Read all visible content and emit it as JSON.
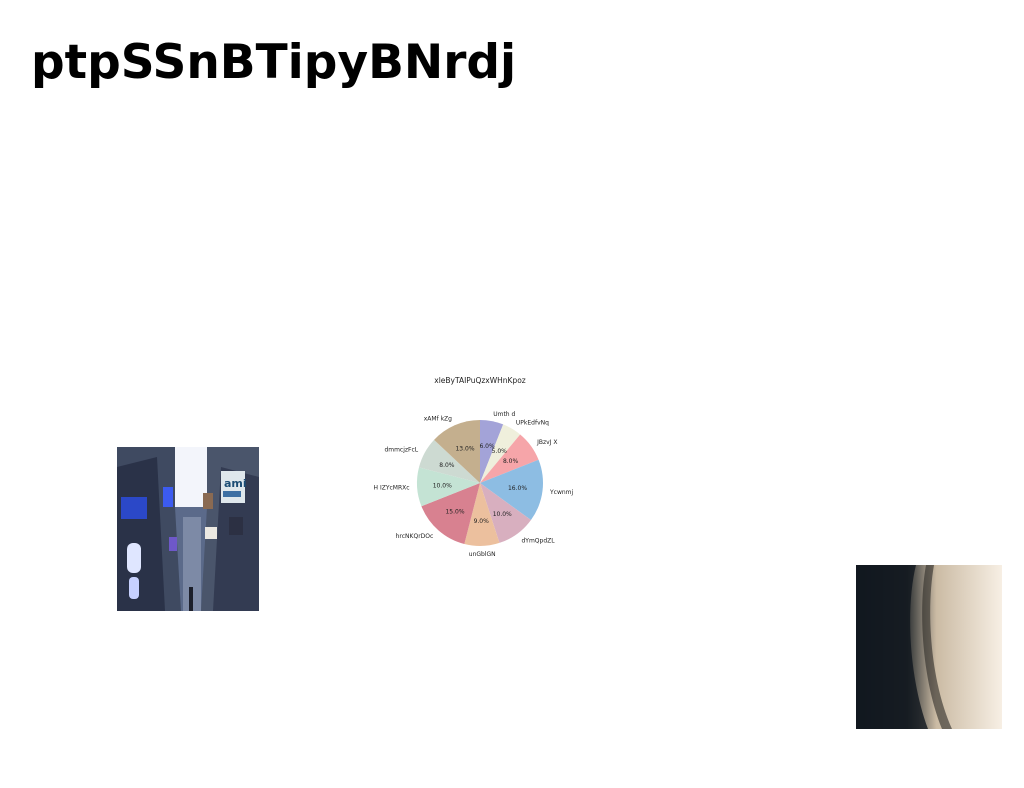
{
  "page": {
    "title": "ptpSSnBTipyBNrdj"
  },
  "images": {
    "alley_photo": {
      "badge_text": "ami"
    }
  },
  "chart_data": {
    "type": "pie",
    "title": "xleByTAIPuQzxWHnKpoz",
    "categories": [
      "Umth d",
      "UPkEdfvNq",
      "JBzvJ X",
      "Ycwnmj",
      "dYmQpdZL",
      "unGblGN",
      "hrcNKQrDOc",
      "H IZYcMRXc",
      "dmmcjzFcL",
      "xAMf kZg"
    ],
    "values": [
      6.0,
      5.0,
      8.0,
      16.0,
      10.0,
      9.0,
      15.0,
      10.0,
      8.0,
      13.0
    ],
    "value_labels": [
      "6.0%",
      "5.0%",
      "8.0%",
      "16.0%",
      "10.0%",
      "9.0%",
      "15.0%",
      "10.0%",
      "8.0%",
      "13.0%"
    ],
    "colors": [
      "#a3a3d8",
      "#efefdc",
      "#f6a5a9",
      "#8dbde3",
      "#d8afbf",
      "#ecc09e",
      "#d88190",
      "#c4e3d4",
      "#cddad2",
      "#c4af8e"
    ],
    "start_angle_deg": 90,
    "direction": "clockwise",
    "legend": "none"
  }
}
